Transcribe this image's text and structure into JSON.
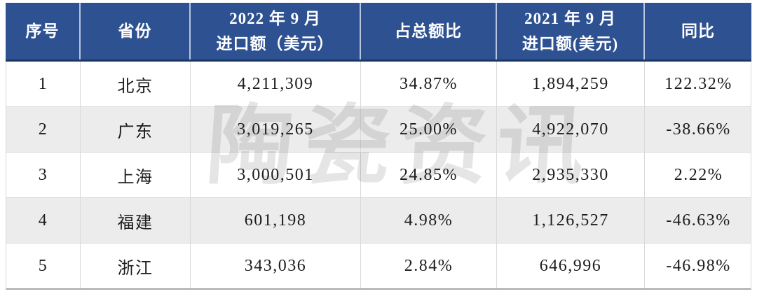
{
  "table": {
    "header": [
      {
        "lines": [
          "序号"
        ]
      },
      {
        "lines": [
          "省份"
        ]
      },
      {
        "lines": [
          "2022 年 9 月",
          "进口额（美元）"
        ]
      },
      {
        "lines": [
          "占总额比"
        ]
      },
      {
        "lines": [
          "2021 年 9 月",
          "进口额(美元)"
        ]
      },
      {
        "lines": [
          "同比"
        ]
      }
    ],
    "rows": [
      {
        "cells": [
          "1",
          "北京",
          "4,211,309",
          "34.87%",
          "1,894,259",
          "122.32%"
        ]
      },
      {
        "cells": [
          "2",
          "广东",
          "3,019,265",
          "25.00%",
          "4,922,070",
          "-38.66%"
        ]
      },
      {
        "cells": [
          "3",
          "上海",
          "3,000,501",
          "24.85%",
          "2,935,330",
          "2.22%"
        ]
      },
      {
        "cells": [
          "4",
          "福建",
          "601,198",
          "4.98%",
          "1,126,527",
          "-46.63%"
        ]
      },
      {
        "cells": [
          "5",
          "浙江",
          "343,036",
          "2.84%",
          "646,996",
          "-46.98%"
        ]
      }
    ]
  },
  "watermark": {
    "text": "陶瓷资讯"
  },
  "colors": {
    "header_bg": "#2e5191",
    "header_text": "#ffffff",
    "header_divider": "#b9c4e0",
    "header_bottom_border": "#1d3763",
    "row_alt_bg": "#ececec",
    "row_divider": "#d9d9d9",
    "body_text": "#1c1c1c"
  }
}
